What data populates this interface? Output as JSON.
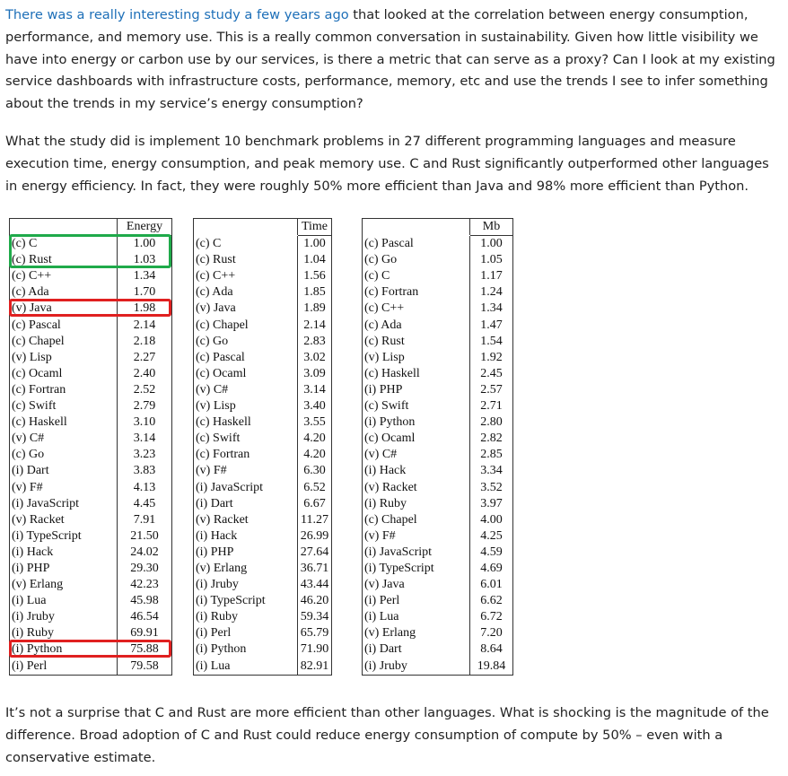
{
  "paragraphs": [
    {
      "link": "There was a really interesting study a few years ago",
      "text": "that looked at the correlation between energy consumption, performance, and memory use. This is a really common conversation in sustainability. Given how little visibility we have into energy or carbon use by our services, is there a metric that can serve as a proxy? Can I look at my existing service dashboards with infrastructure costs, performance, memory, etc and use the trends I see to infer something about the trends in my service’s energy consumption?"
    },
    {
      "text": "What the study did is implement 10 benchmark problems in 27 different programming languages and measure execution time, energy consumption, and peak memory use. C and Rust significantly outperformed other languages in energy efficiency. In fact, they were roughly 50% more efficient than Java and 98% more efficient than Python."
    }
  ],
  "tables": [
    {
      "header": "Energy",
      "rows": [
        [
          "(c) C",
          "1.00"
        ],
        [
          "(c) Rust",
          "1.03"
        ],
        [
          "(c) C++",
          "1.34"
        ],
        [
          "(c) Ada",
          "1.70"
        ],
        [
          "(v) Java",
          "1.98"
        ],
        [
          "(c) Pascal",
          "2.14"
        ],
        [
          "(c) Chapel",
          "2.18"
        ],
        [
          "(v) Lisp",
          "2.27"
        ],
        [
          "(c) Ocaml",
          "2.40"
        ],
        [
          "(c) Fortran",
          "2.52"
        ],
        [
          "(c) Swift",
          "2.79"
        ],
        [
          "(c) Haskell",
          "3.10"
        ],
        [
          "(v) C#",
          "3.14"
        ],
        [
          "(c) Go",
          "3.23"
        ],
        [
          "(i) Dart",
          "3.83"
        ],
        [
          "(v) F#",
          "4.13"
        ],
        [
          "(i) JavaScript",
          "4.45"
        ],
        [
          "(v) Racket",
          "7.91"
        ],
        [
          "(i) TypeScript",
          "21.50"
        ],
        [
          "(i) Hack",
          "24.02"
        ],
        [
          "(i) PHP",
          "29.30"
        ],
        [
          "(v) Erlang",
          "42.23"
        ],
        [
          "(i) Lua",
          "45.98"
        ],
        [
          "(i) Jruby",
          "46.54"
        ],
        [
          "(i) Ruby",
          "69.91"
        ],
        [
          "(i) Python",
          "75.88"
        ],
        [
          "(i) Perl",
          "79.58"
        ]
      ]
    },
    {
      "header": "Time",
      "rows": [
        [
          "(c) C",
          "1.00"
        ],
        [
          "(c) Rust",
          "1.04"
        ],
        [
          "(c) C++",
          "1.56"
        ],
        [
          "(c) Ada",
          "1.85"
        ],
        [
          "(v) Java",
          "1.89"
        ],
        [
          "(c) Chapel",
          "2.14"
        ],
        [
          "(c) Go",
          "2.83"
        ],
        [
          "(c) Pascal",
          "3.02"
        ],
        [
          "(c) Ocaml",
          "3.09"
        ],
        [
          "(v) C#",
          "3.14"
        ],
        [
          "(v) Lisp",
          "3.40"
        ],
        [
          "(c) Haskell",
          "3.55"
        ],
        [
          "(c) Swift",
          "4.20"
        ],
        [
          "(c) Fortran",
          "4.20"
        ],
        [
          "(v) F#",
          "6.30"
        ],
        [
          "(i) JavaScript",
          "6.52"
        ],
        [
          "(i) Dart",
          "6.67"
        ],
        [
          "(v) Racket",
          "11.27"
        ],
        [
          "(i) Hack",
          "26.99"
        ],
        [
          "(i) PHP",
          "27.64"
        ],
        [
          "(v) Erlang",
          "36.71"
        ],
        [
          "(i) Jruby",
          "43.44"
        ],
        [
          "(i) TypeScript",
          "46.20"
        ],
        [
          "(i) Ruby",
          "59.34"
        ],
        [
          "(i) Perl",
          "65.79"
        ],
        [
          "(i) Python",
          "71.90"
        ],
        [
          "(i) Lua",
          "82.91"
        ]
      ]
    },
    {
      "header": "Mb",
      "rows": [
        [
          "(c) Pascal",
          "1.00"
        ],
        [
          "(c) Go",
          "1.05"
        ],
        [
          "(c) C",
          "1.17"
        ],
        [
          "(c) Fortran",
          "1.24"
        ],
        [
          "(c) C++",
          "1.34"
        ],
        [
          "(c) Ada",
          "1.47"
        ],
        [
          "(c) Rust",
          "1.54"
        ],
        [
          "(v) Lisp",
          "1.92"
        ],
        [
          "(c) Haskell",
          "2.45"
        ],
        [
          "(i) PHP",
          "2.57"
        ],
        [
          "(c) Swift",
          "2.71"
        ],
        [
          "(i) Python",
          "2.80"
        ],
        [
          "(c) Ocaml",
          "2.82"
        ],
        [
          "(v) C#",
          "2.85"
        ],
        [
          "(i) Hack",
          "3.34"
        ],
        [
          "(v) Racket",
          "3.52"
        ],
        [
          "(i) Ruby",
          "3.97"
        ],
        [
          "(c) Chapel",
          "4.00"
        ],
        [
          "(v) F#",
          "4.25"
        ],
        [
          "(i) JavaScript",
          "4.59"
        ],
        [
          "(i) TypeScript",
          "4.69"
        ],
        [
          "(v) Java",
          "6.01"
        ],
        [
          "(i) Perl",
          "6.62"
        ],
        [
          "(i) Lua",
          "6.72"
        ],
        [
          "(v) Erlang",
          "7.20"
        ],
        [
          "(i) Dart",
          "8.64"
        ],
        [
          "(i) Jruby",
          "19.84"
        ]
      ]
    }
  ],
  "closing": "It’s not a surprise that C and Rust are more efficient than other languages. What is shocking is the magnitude of the difference. Broad adoption of C and Rust could reduce energy consumption of compute by 50% – even with a conservative estimate."
}
